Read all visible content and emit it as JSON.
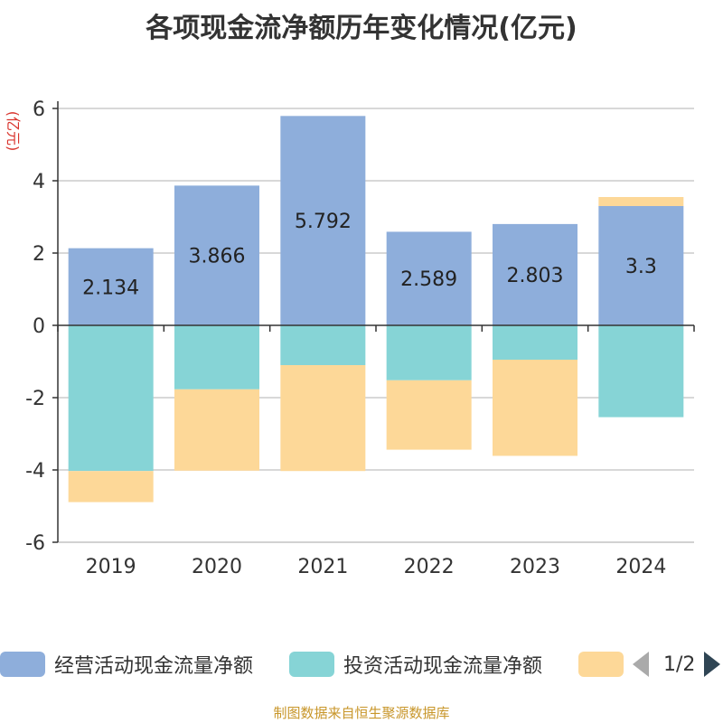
{
  "chart_data": {
    "type": "bar",
    "stacked": true,
    "title": "各项现金流净额历年变化情况(亿元)",
    "ylabel": "(亿元)",
    "categories": [
      "2019",
      "2020",
      "2021",
      "2022",
      "2023",
      "2024"
    ],
    "ylim": [
      -6,
      6
    ],
    "yticks": [
      -6,
      -4,
      -2,
      0,
      2,
      4,
      6
    ],
    "grid": true,
    "legend_position": "bottom",
    "series": [
      {
        "name": "经营活动现金流量净额",
        "color": "#8eaedb",
        "values": [
          2.134,
          3.866,
          5.792,
          2.589,
          2.803,
          3.3
        ],
        "labels": [
          "2.134",
          "3.866",
          "5.792",
          "2.589",
          "2.803",
          "3.3"
        ]
      },
      {
        "name": "投资活动现金流量净额",
        "color": "#86d4d6",
        "values": [
          -4.03,
          -1.77,
          -1.1,
          -1.52,
          -0.95,
          -2.54
        ]
      },
      {
        "name": "",
        "color": "#fdd898",
        "values": [
          -0.86,
          -2.25,
          -2.93,
          -1.92,
          -2.66,
          0.25
        ]
      }
    ]
  },
  "legend": {
    "items": [
      "经营活动现金流量净额",
      "投资活动现金流量净额",
      ""
    ],
    "page": "1/2"
  },
  "source": "制图数据来自恒生聚源数据库"
}
